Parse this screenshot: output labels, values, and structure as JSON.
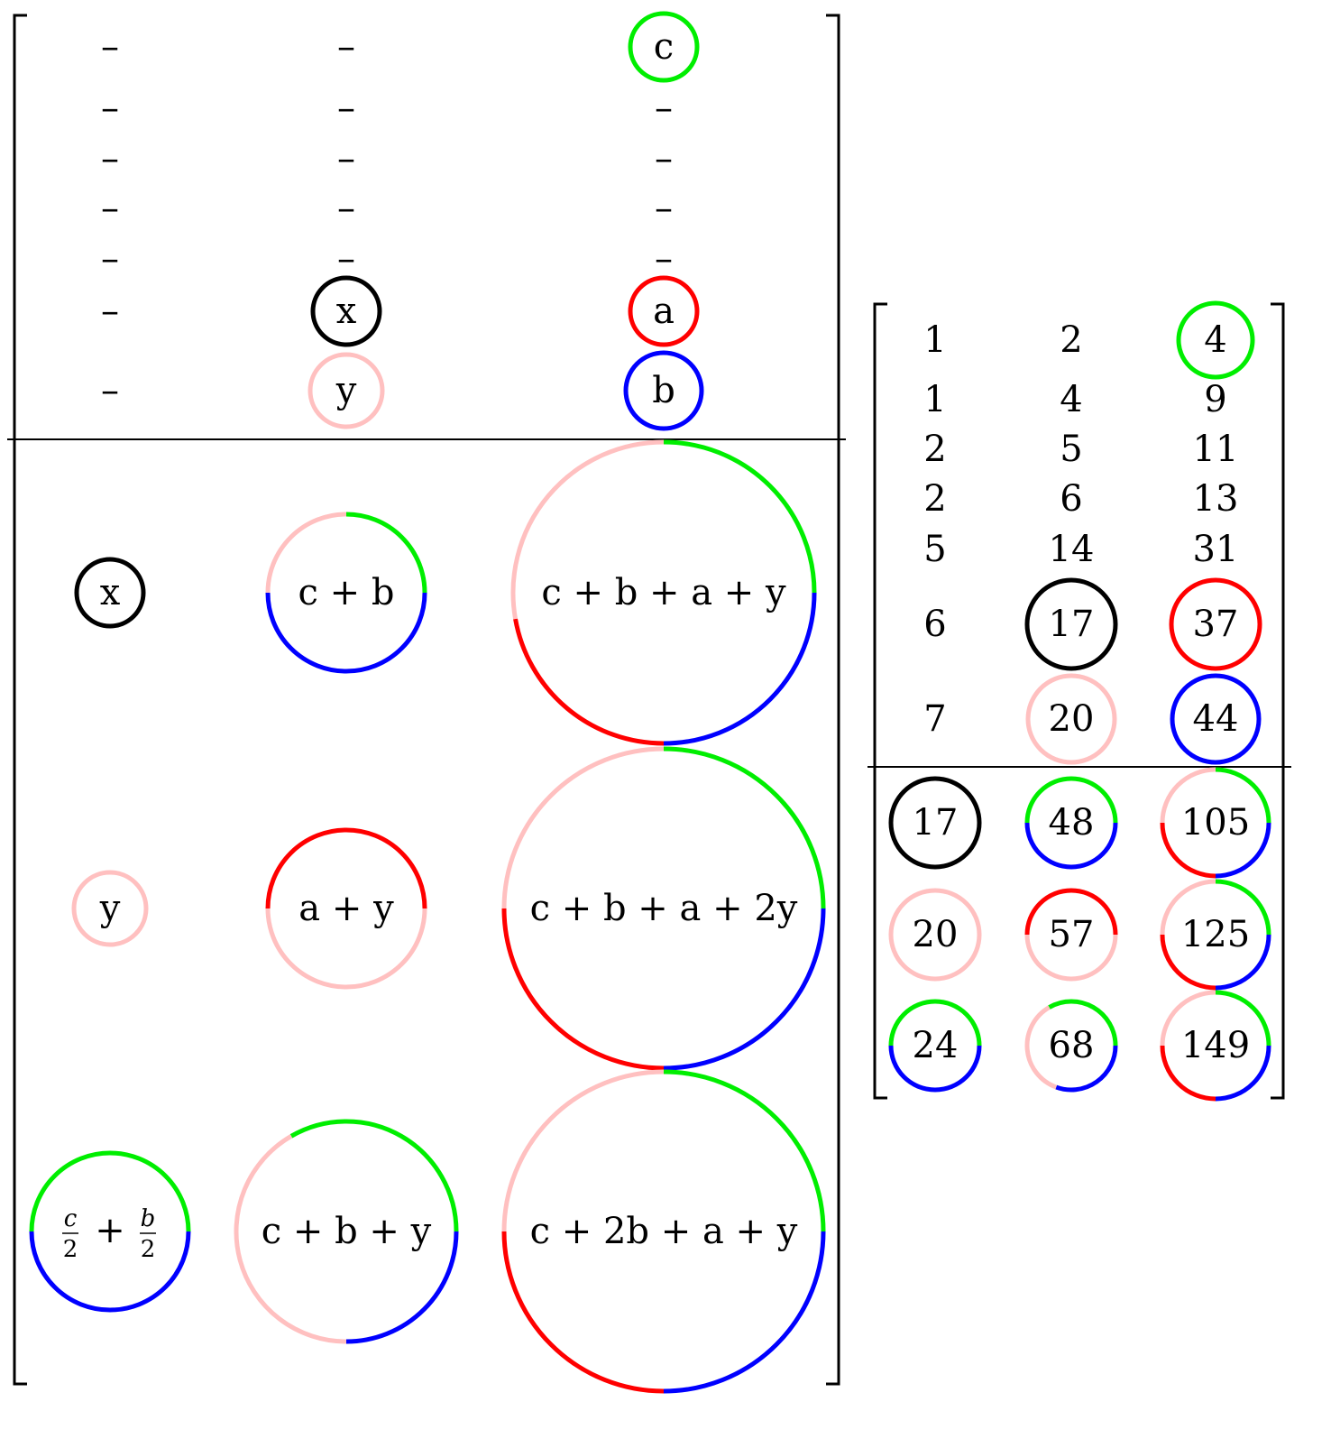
{
  "colors": {
    "black": "#000000",
    "pink": "#ffc0c0",
    "green": "#00ee00",
    "red": "#ff0000",
    "blue": "#0000ff"
  },
  "left_matrix": {
    "header": [
      [
        "–",
        "–",
        "c"
      ],
      [
        "–",
        "–",
        "–"
      ],
      [
        "–",
        "–",
        "–"
      ],
      [
        "–",
        "–",
        "–"
      ],
      [
        "–",
        "–",
        "–"
      ],
      [
        "–",
        "x",
        "a"
      ],
      [
        "–",
        "y",
        "b"
      ]
    ],
    "body": [
      [
        "x",
        "c + b",
        "c + b + a + y"
      ],
      [
        "y",
        "a + y",
        "c + b + a + 2y"
      ],
      [
        "c/2 + b/2",
        "c + b + y",
        "c + 2b + a + y"
      ]
    ]
  },
  "right_matrix": {
    "header": [
      [
        "1",
        "2",
        "4"
      ],
      [
        "1",
        "4",
        "9"
      ],
      [
        "2",
        "5",
        "11"
      ],
      [
        "2",
        "6",
        "13"
      ],
      [
        "5",
        "14",
        "31"
      ],
      [
        "6",
        "17",
        "37"
      ],
      [
        "7",
        "20",
        "44"
      ]
    ],
    "body": [
      [
        "17",
        "48",
        "105"
      ],
      [
        "20",
        "57",
        "125"
      ],
      [
        "24",
        "68",
        "149"
      ]
    ]
  }
}
